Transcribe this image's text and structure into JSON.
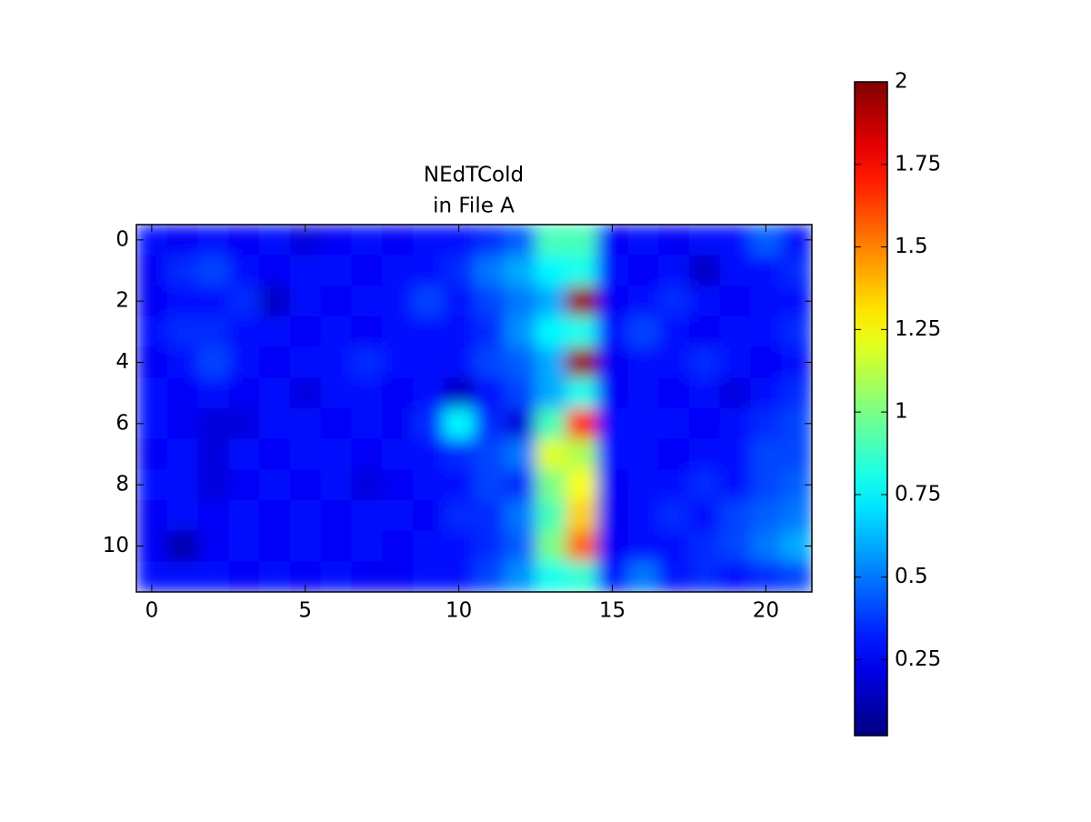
{
  "chart_data": {
    "type": "heatmap",
    "title": [
      "NEdTCold",
      "in File A"
    ],
    "colormap": "jet",
    "xlim": [
      -0.5,
      21.5
    ],
    "xticks": [
      0,
      5,
      10,
      15,
      20
    ],
    "ylim": [
      11.5,
      -0.5
    ],
    "yticks": [
      0,
      2,
      4,
      6,
      8,
      10
    ],
    "clim": [
      0.02,
      2.0
    ],
    "cticks": [
      0.25,
      0.5,
      0.75,
      1,
      1.25,
      1.5,
      1.75,
      2
    ],
    "values": [
      [
        0.3,
        0.25,
        0.3,
        0.25,
        0.3,
        0.2,
        0.25,
        0.3,
        0.25,
        0.3,
        0.3,
        0.35,
        0.45,
        0.9,
        0.9,
        0.25,
        0.3,
        0.25,
        0.3,
        0.3,
        0.45,
        0.3
      ],
      [
        0.25,
        0.35,
        0.4,
        0.3,
        0.25,
        0.3,
        0.3,
        0.25,
        0.3,
        0.3,
        0.35,
        0.5,
        0.6,
        0.75,
        0.8,
        0.3,
        0.25,
        0.3,
        0.15,
        0.3,
        0.3,
        0.35
      ],
      [
        0.25,
        0.3,
        0.3,
        0.35,
        0.15,
        0.3,
        0.25,
        0.3,
        0.3,
        0.4,
        0.3,
        0.4,
        0.5,
        0.6,
        1.95,
        0.25,
        0.3,
        0.35,
        0.3,
        0.25,
        0.3,
        0.3
      ],
      [
        0.3,
        0.35,
        0.35,
        0.3,
        0.3,
        0.25,
        0.3,
        0.25,
        0.3,
        0.3,
        0.3,
        0.35,
        0.55,
        0.75,
        0.8,
        0.3,
        0.4,
        0.3,
        0.25,
        0.3,
        0.3,
        0.35
      ],
      [
        0.25,
        0.3,
        0.4,
        0.3,
        0.25,
        0.3,
        0.3,
        0.35,
        0.3,
        0.3,
        0.3,
        0.4,
        0.45,
        0.6,
        1.95,
        0.25,
        0.3,
        0.3,
        0.35,
        0.3,
        0.25,
        0.3
      ],
      [
        0.3,
        0.25,
        0.3,
        0.25,
        0.3,
        0.2,
        0.3,
        0.3,
        0.25,
        0.3,
        0.15,
        0.3,
        0.4,
        0.6,
        0.8,
        0.25,
        0.3,
        0.25,
        0.3,
        0.2,
        0.3,
        0.35
      ],
      [
        0.3,
        0.25,
        0.2,
        0.2,
        0.3,
        0.3,
        0.25,
        0.3,
        0.25,
        0.35,
        0.75,
        0.35,
        0.2,
        0.9,
        1.7,
        0.3,
        0.3,
        0.3,
        0.25,
        0.3,
        0.35,
        0.4
      ],
      [
        0.25,
        0.3,
        0.2,
        0.3,
        0.25,
        0.3,
        0.3,
        0.25,
        0.3,
        0.3,
        0.35,
        0.4,
        0.5,
        1.2,
        1.1,
        0.3,
        0.3,
        0.25,
        0.3,
        0.3,
        0.4,
        0.4
      ],
      [
        0.3,
        0.3,
        0.2,
        0.25,
        0.3,
        0.25,
        0.3,
        0.2,
        0.25,
        0.3,
        0.3,
        0.4,
        0.35,
        1.0,
        1.25,
        0.25,
        0.3,
        0.3,
        0.35,
        0.3,
        0.4,
        0.45
      ],
      [
        0.25,
        0.3,
        0.25,
        0.3,
        0.25,
        0.3,
        0.25,
        0.3,
        0.3,
        0.25,
        0.35,
        0.35,
        0.5,
        0.9,
        1.35,
        0.25,
        0.3,
        0.35,
        0.3,
        0.4,
        0.45,
        0.5
      ],
      [
        0.25,
        0.1,
        0.25,
        0.3,
        0.25,
        0.3,
        0.25,
        0.3,
        0.25,
        0.3,
        0.3,
        0.35,
        0.45,
        1.0,
        1.55,
        0.25,
        0.3,
        0.3,
        0.35,
        0.4,
        0.5,
        0.6
      ],
      [
        0.3,
        0.3,
        0.3,
        0.25,
        0.3,
        0.25,
        0.3,
        0.25,
        0.25,
        0.3,
        0.3,
        0.4,
        0.55,
        0.8,
        0.85,
        0.3,
        0.5,
        0.3,
        0.35,
        0.3,
        0.35,
        0.4
      ]
    ]
  }
}
